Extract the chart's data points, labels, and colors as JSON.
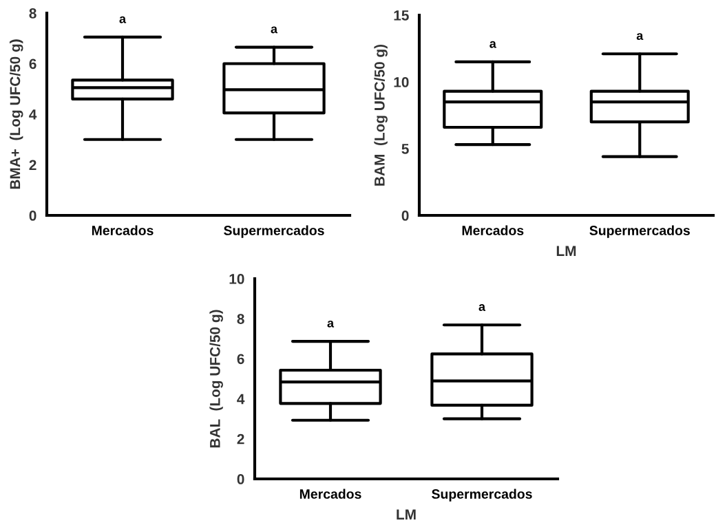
{
  "chart_data": [
    {
      "type": "box",
      "ylabel": "BMA+  (Log UFC/50 g)",
      "categories": [
        "Mercados",
        "Supermercados"
      ],
      "boxes": [
        {
          "low": 3.0,
          "q1": 4.6,
          "median": 5.05,
          "q3": 5.35,
          "high": 7.05
        },
        {
          "low": 3.0,
          "q1": 4.05,
          "median": 4.97,
          "q3": 6.0,
          "high": 6.65
        }
      ],
      "ylim": [
        0,
        8
      ],
      "yticks": [
        0,
        2,
        4,
        6,
        8
      ],
      "color": "#000000",
      "annotations": [
        "a",
        "a"
      ]
    },
    {
      "type": "box",
      "ylabel": "BAM  (Log UFC/50 g)",
      "xlabel": "LM",
      "categories": [
        "Mercados",
        "Supermercados"
      ],
      "boxes": [
        {
          "low": 5.3,
          "q1": 6.6,
          "median": 8.5,
          "q3": 9.3,
          "high": 11.5
        },
        {
          "low": 4.4,
          "q1": 7.0,
          "median": 8.5,
          "q3": 9.3,
          "high": 12.1
        }
      ],
      "ylim": [
        0,
        15
      ],
      "yticks": [
        0,
        5,
        10,
        15
      ],
      "color": "#000000",
      "annotations": [
        "a",
        "a"
      ]
    },
    {
      "type": "box",
      "ylabel": "BAL  (Log UFC/50 g)",
      "xlabel": "LM",
      "categories": [
        "Mercados",
        "Supermercados"
      ],
      "boxes": [
        {
          "low": 2.93,
          "q1": 3.77,
          "median": 4.84,
          "q3": 5.43,
          "high": 6.87
        },
        {
          "low": 3.0,
          "q1": 3.68,
          "median": 4.89,
          "q3": 6.24,
          "high": 7.69
        }
      ],
      "ylim": [
        0,
        10
      ],
      "yticks": [
        0,
        2,
        4,
        6,
        8,
        10
      ],
      "color": "#000000",
      "annotations": [
        "a",
        "a"
      ]
    }
  ]
}
